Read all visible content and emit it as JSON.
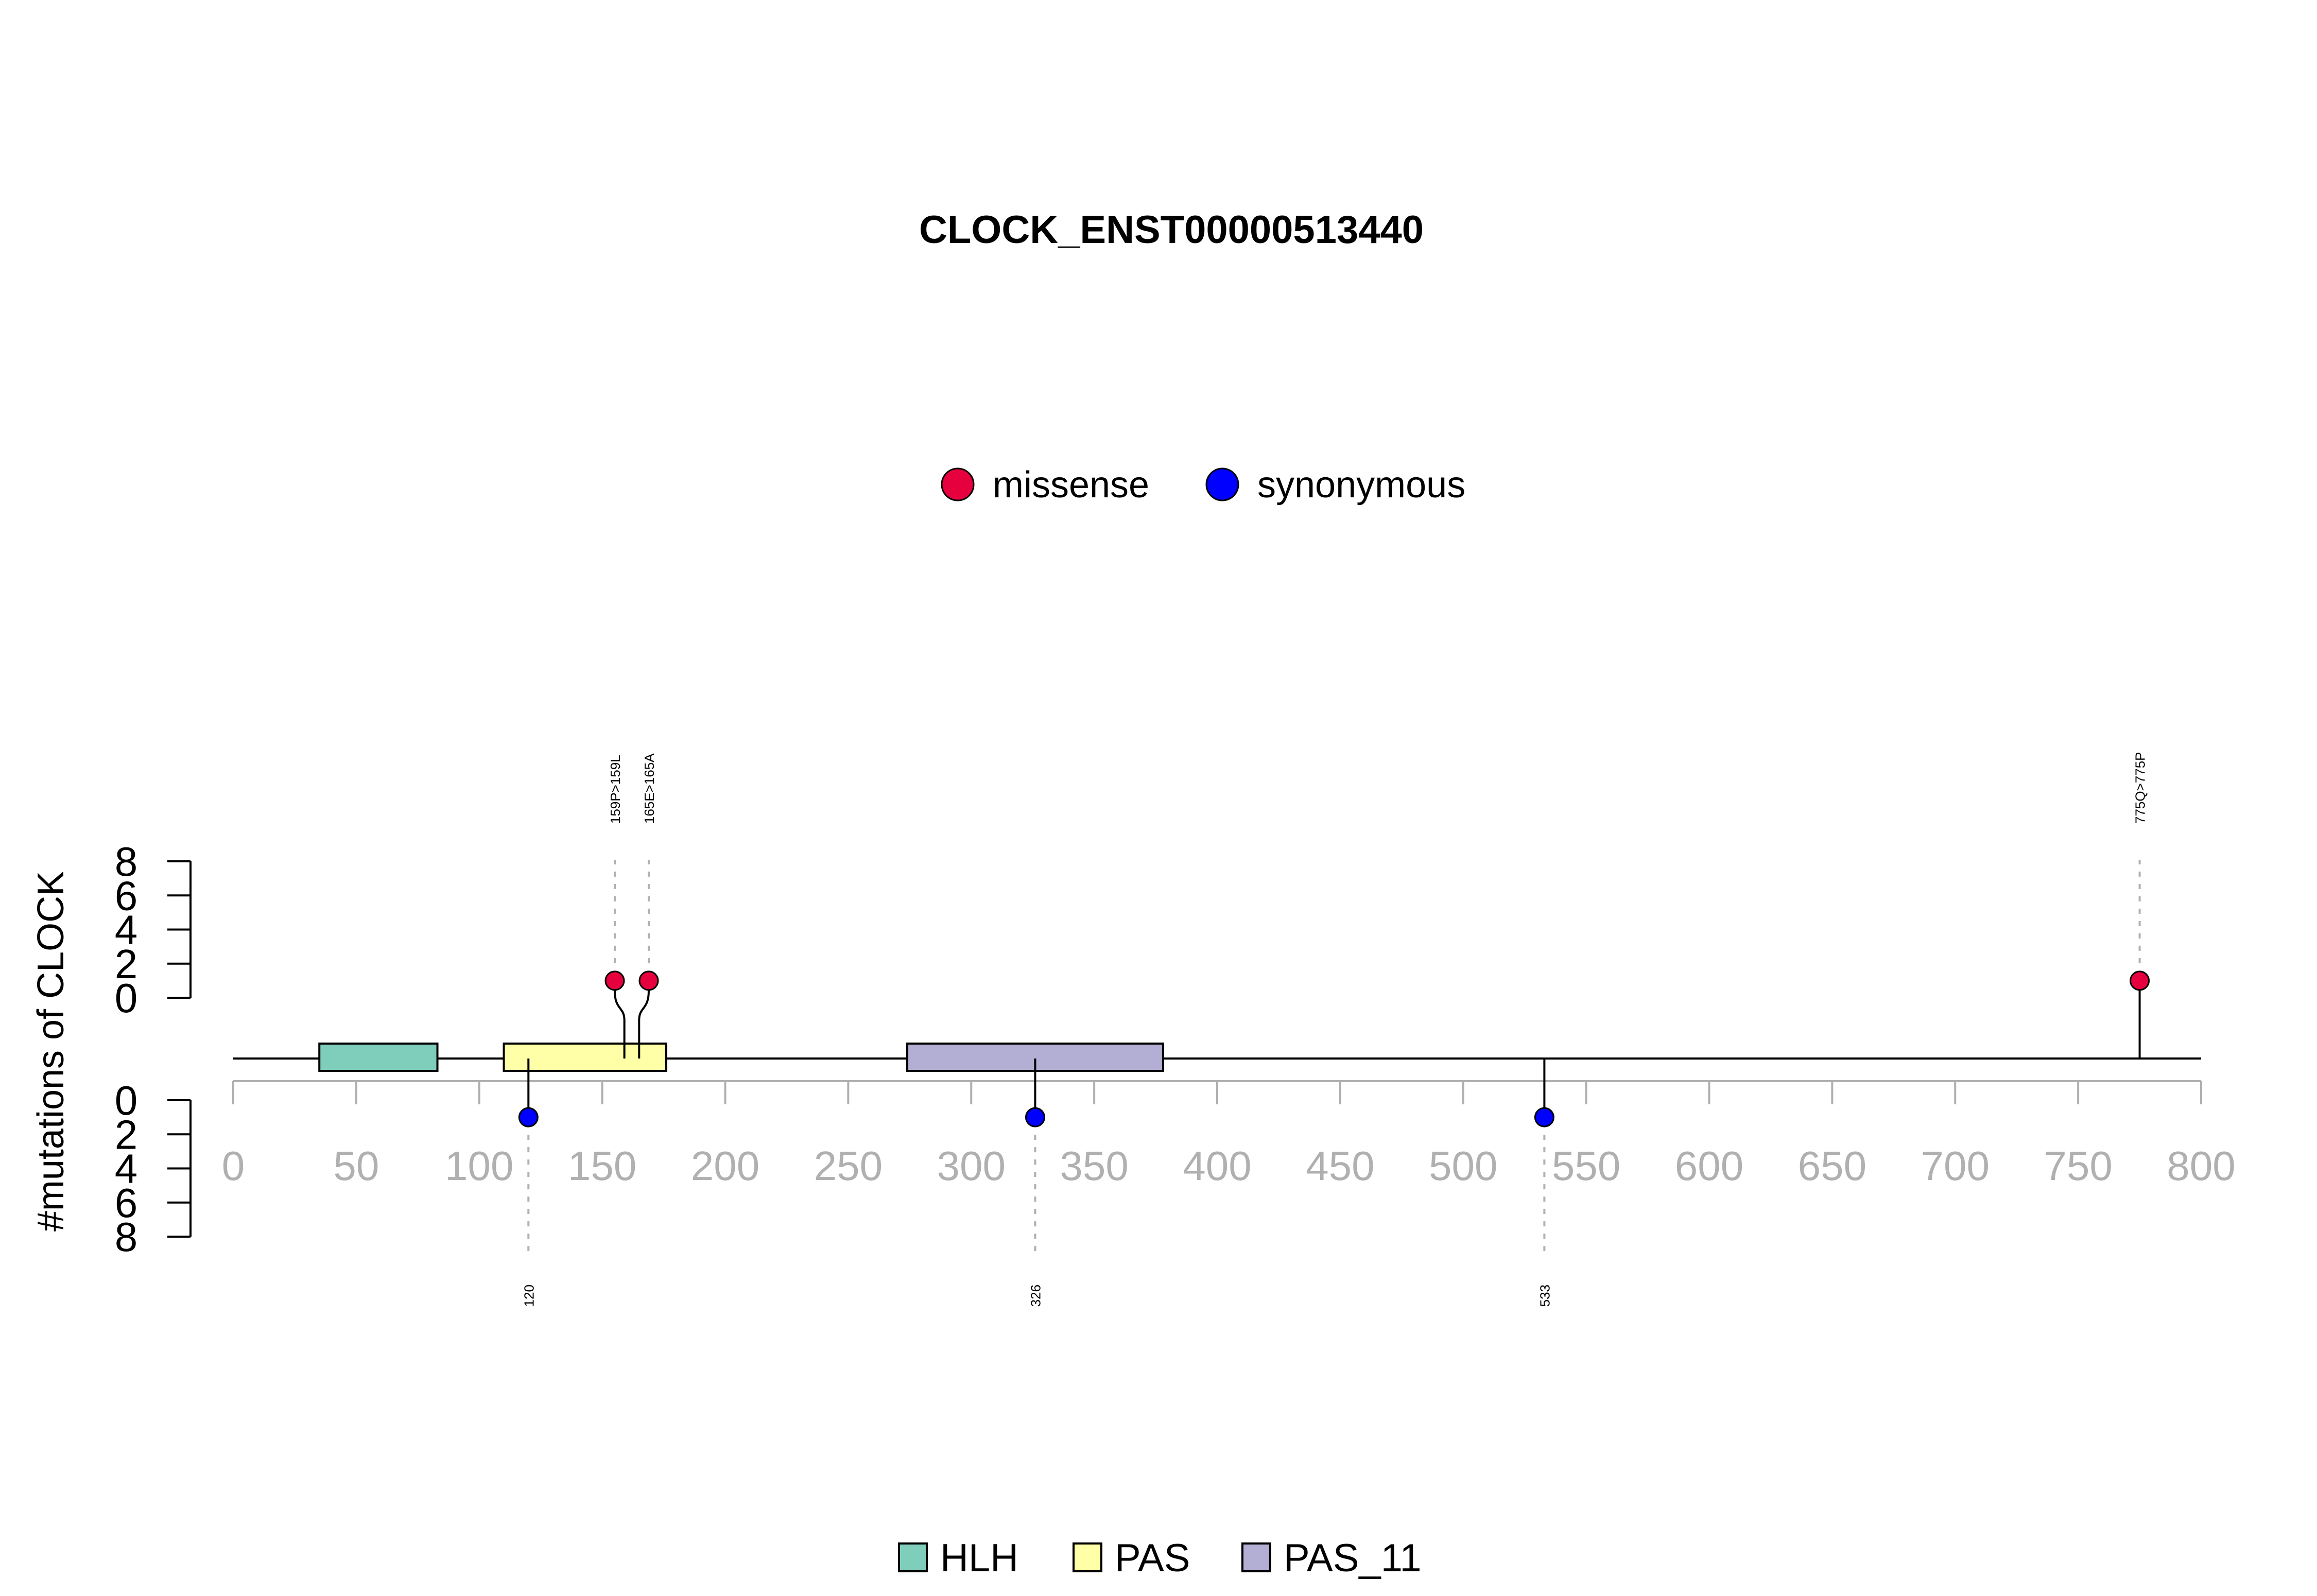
{
  "chart_data": {
    "type": "lollipop",
    "title": "CLOCK_ENST00000513440",
    "ylabel": "#mutations of CLOCK",
    "xlim": [
      0,
      800
    ],
    "x_ticks": [
      0,
      50,
      100,
      150,
      200,
      250,
      300,
      350,
      400,
      450,
      500,
      550,
      600,
      650,
      700,
      750,
      800
    ],
    "y_ticks_top": [
      0,
      2,
      4,
      6,
      8
    ],
    "y_ticks_bottom": [
      0,
      2,
      4,
      6,
      8
    ],
    "ylim": [
      0,
      8
    ],
    "legend_mutations": [
      {
        "label": "missense",
        "color": "#e6003e"
      },
      {
        "label": "synonymous",
        "color": "#0000ff"
      }
    ],
    "legend_domains": [
      {
        "label": "HLH",
        "color": "#7fcdbb"
      },
      {
        "label": "PAS",
        "color": "#ffffa8"
      },
      {
        "label": "PAS_11",
        "color": "#b3aed3"
      }
    ],
    "domains": [
      {
        "name": "HLH",
        "start": 35,
        "end": 83,
        "color": "#7fcdbb"
      },
      {
        "name": "PAS",
        "start": 110,
        "end": 176,
        "color": "#ffffa8"
      },
      {
        "name": "PAS_11",
        "start": 274,
        "end": 378,
        "color": "#b3aed3"
      }
    ],
    "mutations_top": [
      {
        "position": 159,
        "count": 1,
        "label": "159P>159L",
        "type": "missense"
      },
      {
        "position": 165,
        "count": 1,
        "label": "165E>165A",
        "type": "missense"
      },
      {
        "position": 775,
        "count": 1,
        "label": "775Q>775P",
        "type": "missense"
      }
    ],
    "mutations_bottom": [
      {
        "position": 120,
        "count": 1,
        "label": "120",
        "type": "synonymous"
      },
      {
        "position": 326,
        "count": 1,
        "label": "326",
        "type": "synonymous"
      },
      {
        "position": 533,
        "count": 1,
        "label": "533",
        "type": "synonymous"
      }
    ]
  }
}
